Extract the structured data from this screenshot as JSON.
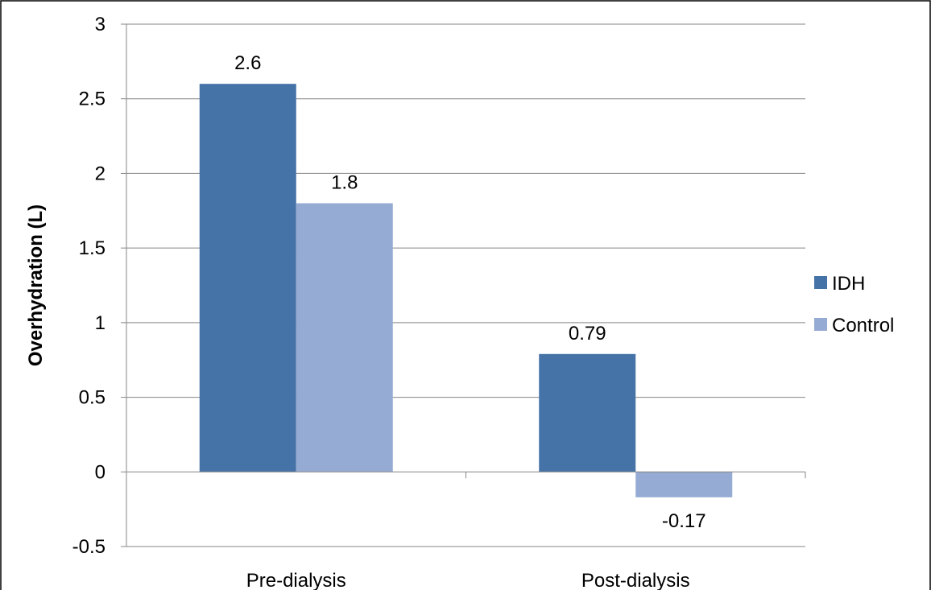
{
  "chart_data": {
    "type": "bar",
    "title": "",
    "xlabel": "",
    "ylabel": "Overhydration (L)",
    "categories": [
      "Pre-dialysis",
      "Post-dialysis"
    ],
    "series": [
      {
        "name": "IDH",
        "values": [
          2.6,
          0.79
        ],
        "labels": [
          "2.6",
          "0.79"
        ],
        "color": "#4572A7"
      },
      {
        "name": "Control",
        "values": [
          1.8,
          -0.17
        ],
        "labels": [
          "1.8",
          "-0.17"
        ],
        "color": "#95ABD3"
      }
    ],
    "ylim": [
      -0.5,
      3
    ],
    "yticks": [
      -0.5,
      0,
      0.5,
      1,
      1.5,
      2,
      2.5,
      3
    ],
    "ytick_labels": [
      "-0.5",
      "0",
      "0.5",
      "1",
      "1.5",
      "2",
      "2.5",
      "3"
    ],
    "grid": true,
    "legend_position": "right"
  }
}
